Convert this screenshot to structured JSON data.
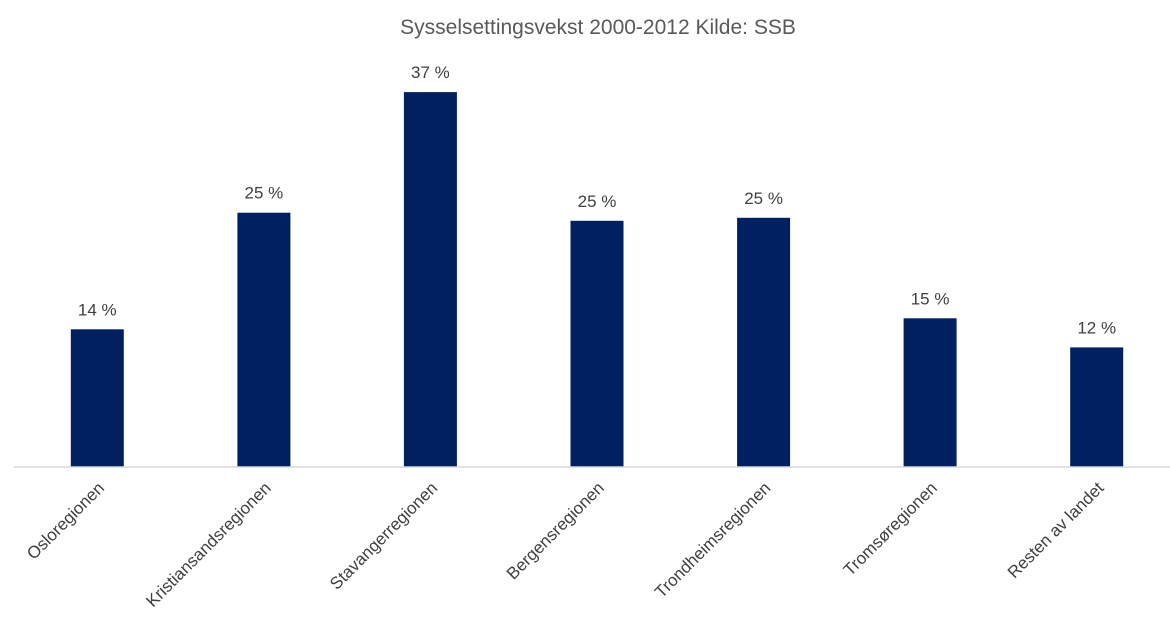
{
  "chart_data": {
    "type": "bar",
    "title": "Sysselsettingsvekst 2000-2012 Kilde: SSB",
    "categories": [
      "Osloregionen",
      "Kristiansandsregionen",
      "Stavangerregionen",
      "Bergensregionen",
      "Trondheimsregionen",
      "Tromsøregionen",
      "Resten av landet"
    ],
    "values": [
      13.7,
      25.3,
      37.3,
      24.5,
      24.8,
      14.8,
      11.9
    ],
    "data_labels": [
      "14 %",
      "25 %",
      "37 %",
      "25 %",
      "25 %",
      "15 %",
      "12 %"
    ],
    "xlabel": "",
    "ylabel": "",
    "ylim": [
      0,
      40
    ],
    "grid": false,
    "legend": "none",
    "bar_color": "#002060",
    "axis_color": "#d9d9d9"
  }
}
